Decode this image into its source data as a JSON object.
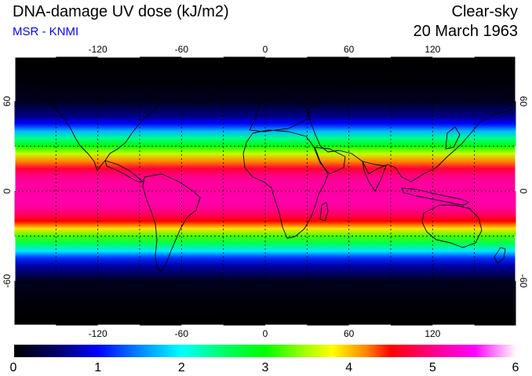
{
  "header": {
    "title": "DNA-damage UV dose (kJ/m2)",
    "source": "MSR - KNMI",
    "condition": "Clear-sky",
    "date": "20 March 1963"
  },
  "map": {
    "projection": "equirectangular",
    "lon_range": [
      -180,
      180
    ],
    "lat_range": [
      -90,
      90
    ],
    "lon_ticks": [
      -120,
      -60,
      0,
      60,
      120
    ],
    "lat_ticks": [
      60,
      0,
      -60
    ],
    "lon_tick_labels": [
      "-120",
      "-60",
      "0",
      "60",
      "120"
    ],
    "lat_tick_labels": [
      "60",
      "0",
      "-60"
    ],
    "right_lat_tick_labels": [
      "60",
      "0",
      "-60"
    ],
    "grid_lon_step": 30,
    "grid_lat_step": 30,
    "grid": true,
    "grid_style": "dashed",
    "value_field": "uv-dose-by-latitude",
    "profile_lat": [
      -90,
      -75,
      -60,
      -50,
      -45,
      -40,
      -35,
      -30,
      -25,
      -20,
      -15,
      -10,
      -5,
      0,
      5,
      10,
      15,
      20,
      25,
      30,
      35,
      40,
      45,
      50,
      60,
      75,
      90
    ],
    "profile_value": [
      0,
      0.05,
      0.15,
      0.7,
      1.15,
      1.9,
      2.6,
      3.2,
      3.9,
      4.5,
      4.9,
      5.1,
      5.15,
      5.1,
      5.1,
      5.0,
      4.7,
      4.2,
      3.6,
      3.0,
      2.4,
      1.7,
      1.0,
      0.6,
      0.15,
      0.03,
      0
    ]
  },
  "colorbar": {
    "min": 0,
    "max": 6,
    "tick_labels": [
      "0",
      "1",
      "2",
      "3",
      "4",
      "5",
      "6"
    ],
    "tick_values": [
      0,
      1,
      2,
      3,
      4,
      5,
      6
    ],
    "stops": [
      {
        "v": 0.0,
        "color": "#000000"
      },
      {
        "v": 0.5,
        "color": "#000066"
      },
      {
        "v": 1.0,
        "color": "#0000ff"
      },
      {
        "v": 1.5,
        "color": "#0088ff"
      },
      {
        "v": 2.0,
        "color": "#00ffff"
      },
      {
        "v": 2.5,
        "color": "#00ff66"
      },
      {
        "v": 3.0,
        "color": "#00ff00"
      },
      {
        "v": 3.5,
        "color": "#aaff00"
      },
      {
        "v": 3.8,
        "color": "#ffff00"
      },
      {
        "v": 4.2,
        "color": "#ff8800"
      },
      {
        "v": 4.5,
        "color": "#ff0000"
      },
      {
        "v": 5.0,
        "color": "#ff0088"
      },
      {
        "v": 5.5,
        "color": "#ff00ff"
      },
      {
        "v": 6.0,
        "color": "#ffffff"
      }
    ]
  },
  "colors": {
    "source_text": "#0000ff",
    "coastline": "#000000",
    "grid": "#000000"
  }
}
